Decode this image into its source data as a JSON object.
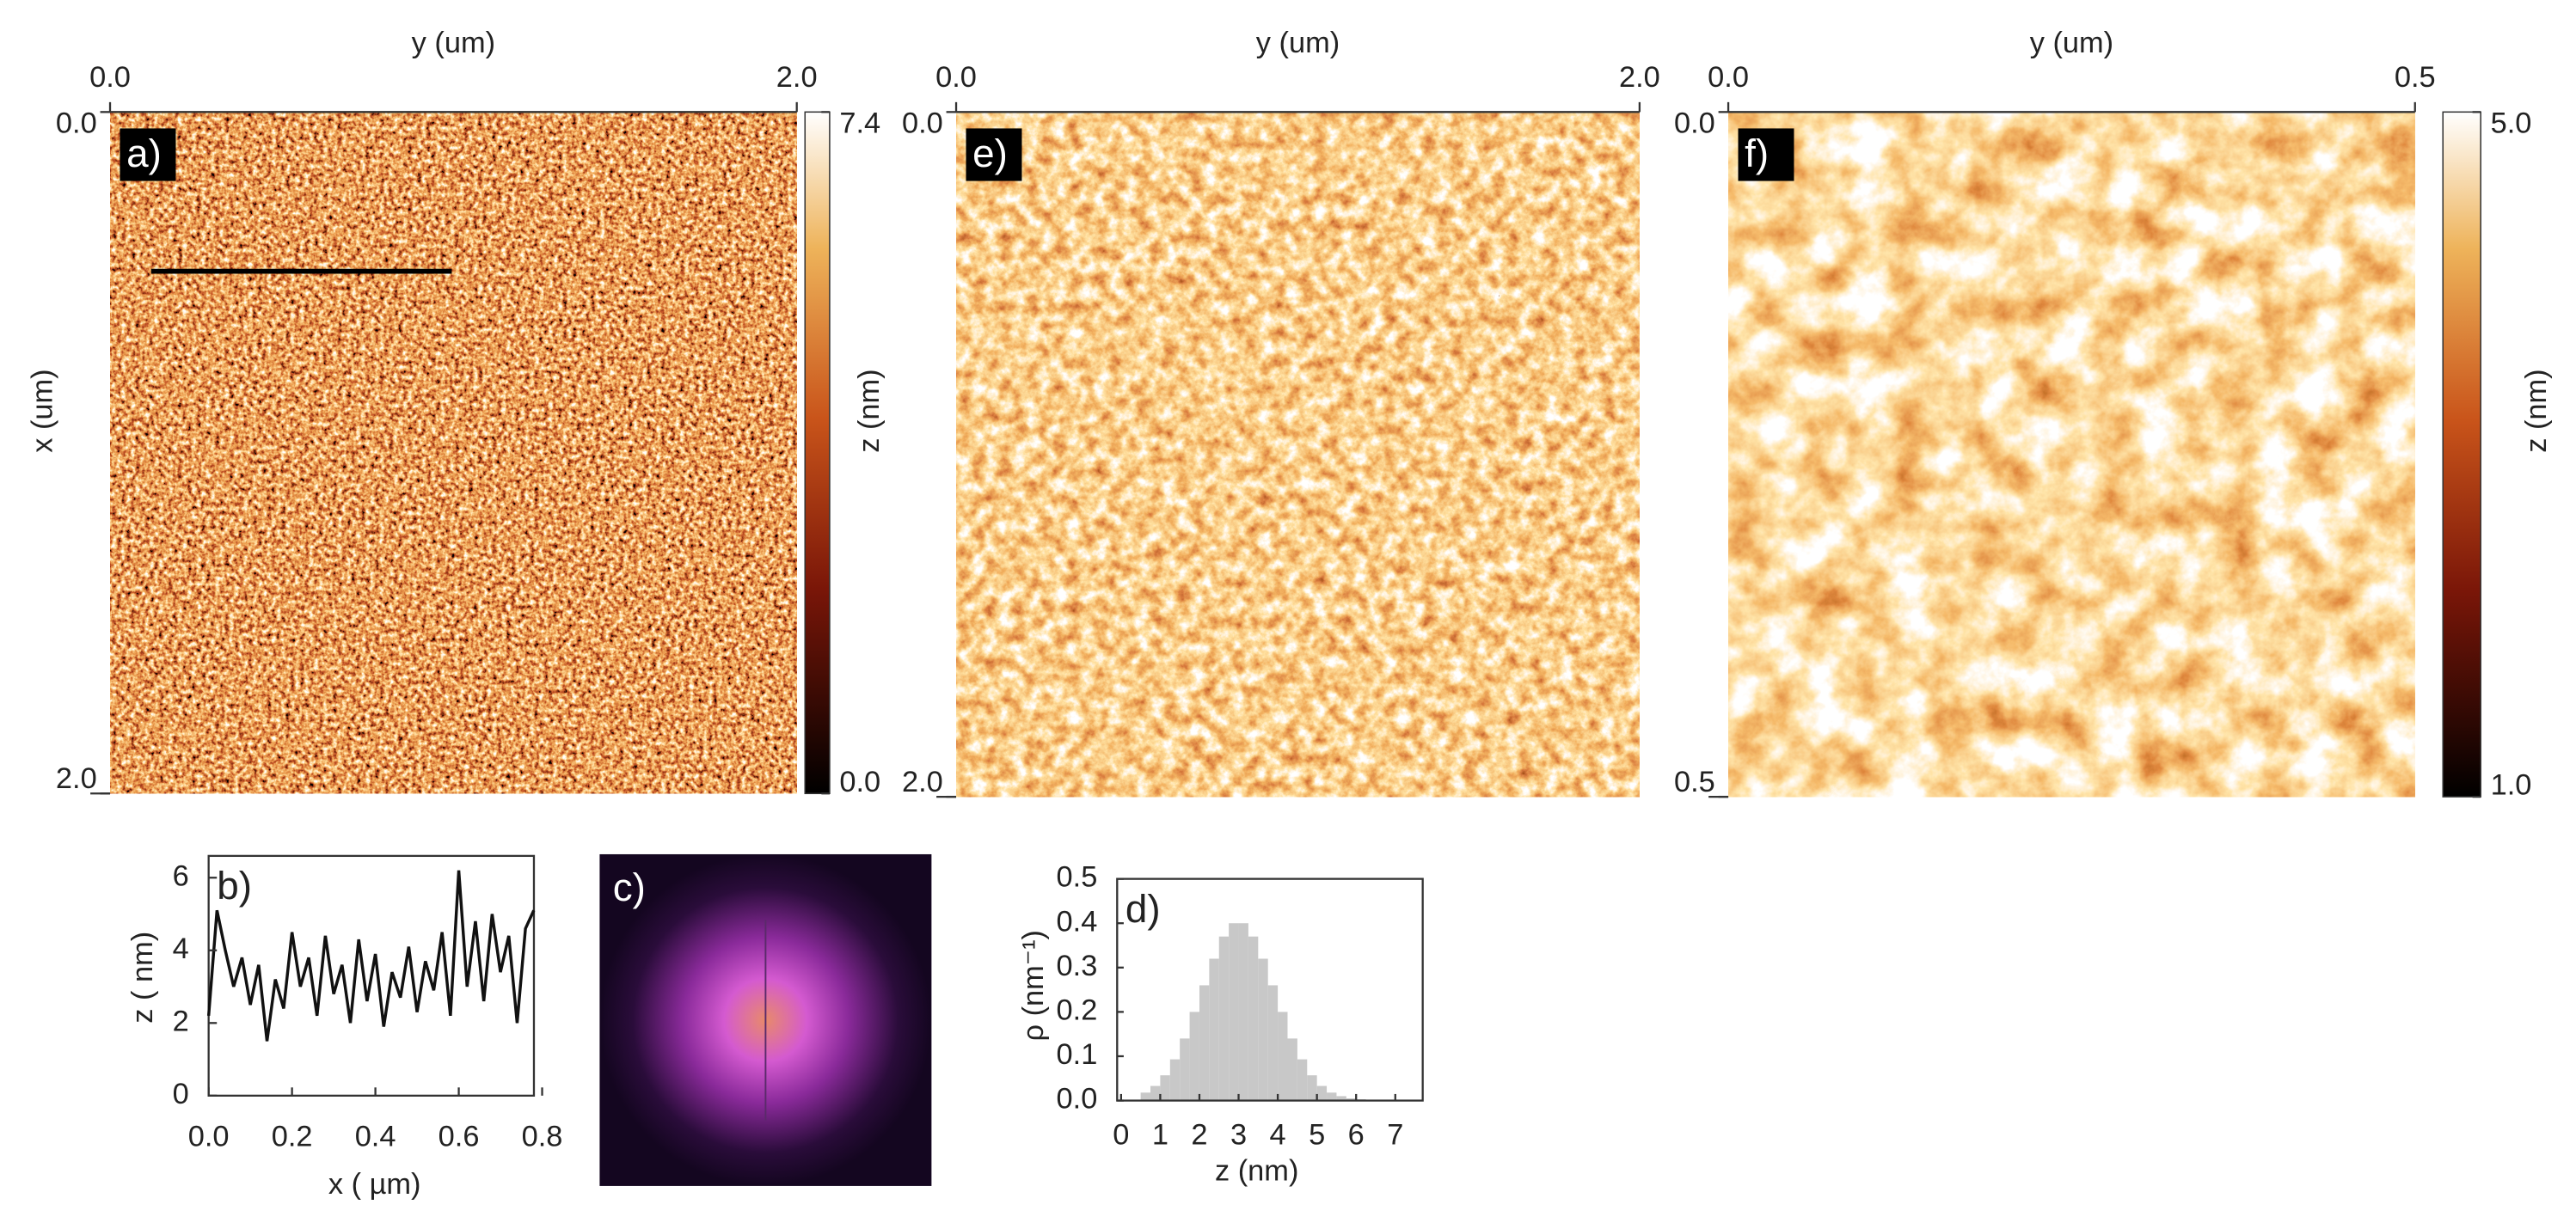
{
  "chart_data": [
    {
      "type": "image",
      "label": "a)",
      "xlabel": "y (um)",
      "ylabel": "x (um)",
      "xlim": [
        0,
        2
      ],
      "xticks": [
        {
          "value": 0,
          "label": "0.0"
        },
        {
          "value": 2,
          "label": "2.0"
        }
      ],
      "ylim": [
        0,
        2
      ],
      "yticks": [
        {
          "value": 0,
          "label": "0.0"
        },
        {
          "value": 2,
          "label": "2.0"
        }
      ],
      "colorbar": {
        "label": "z (nm)",
        "lim": [
          0,
          7.4
        ],
        "ticks": [
          {
            "value": 0,
            "label": "0.0"
          },
          7.4
        ]
      }
    },
    {
      "type": "line",
      "label": "b)",
      "xlabel": "x ( µm)",
      "ylabel": "z ( nm)",
      "color": "#111111",
      "x": [
        0,
        0.02,
        0.04,
        0.06,
        0.08,
        0.1,
        0.12,
        0.14,
        0.16,
        0.18,
        0.2,
        0.22,
        0.24,
        0.26,
        0.28,
        0.3,
        0.32,
        0.34,
        0.36,
        0.38,
        0.4,
        0.42,
        0.44,
        0.46,
        0.48,
        0.5,
        0.52,
        0.54,
        0.56,
        0.58,
        0.6,
        0.62,
        0.64,
        0.66,
        0.68,
        0.7,
        0.72,
        0.74,
        0.76,
        0.78
      ],
      "values": [
        2.2,
        5.1,
        4.0,
        3.0,
        3.8,
        2.5,
        3.6,
        1.5,
        3.2,
        2.4,
        4.5,
        3.0,
        3.8,
        2.2,
        4.4,
        2.8,
        3.6,
        2.0,
        4.3,
        2.6,
        3.9,
        1.9,
        3.4,
        2.7,
        4.1,
        2.3,
        3.7,
        2.9,
        4.5,
        2.2,
        6.2,
        3.0,
        4.8,
        2.6,
        5.0,
        3.4,
        4.4,
        2.0,
        4.6,
        5.1
      ],
      "xlim": [
        0,
        0.8
      ],
      "xticks": [
        {
          "value": 0,
          "label": "0.0"
        },
        0.2,
        0.4,
        0.6,
        0.8
      ],
      "ylim": [
        0,
        6.6
      ],
      "yticks": [
        0,
        2,
        4,
        6
      ]
    },
    {
      "type": "image",
      "label": "c)"
    },
    {
      "type": "histogram",
      "label": "d)",
      "xlabel": "z (nm)",
      "ylabel": "ρ (nm⁻¹)",
      "color": "#c8c8c8",
      "bins": [
        0.5,
        0.75,
        1.0,
        1.25,
        1.5,
        1.75,
        2.0,
        2.25,
        2.5,
        2.75,
        3.0,
        3.25,
        3.5,
        3.75,
        4.0,
        4.25,
        4.5,
        4.75,
        5.0,
        5.25,
        5.5,
        5.75,
        6.0,
        6.25,
        6.5,
        6.75,
        7.0
      ],
      "values": [
        0.018,
        0.033,
        0.057,
        0.093,
        0.14,
        0.2,
        0.26,
        0.32,
        0.37,
        0.4,
        0.4,
        0.37,
        0.32,
        0.26,
        0.2,
        0.14,
        0.093,
        0.057,
        0.033,
        0.018,
        0.01,
        0.005,
        0.003,
        0.002,
        0.001,
        0.001
      ],
      "xlim": [
        -0.1,
        7.7
      ],
      "xticks": [
        0,
        1,
        2,
        3,
        4,
        5,
        6,
        7
      ],
      "ylim": [
        0,
        0.5
      ],
      "yticks": [
        {
          "value": 0,
          "label": "0.0"
        },
        0.1,
        0.2,
        0.3,
        0.4,
        0.5
      ]
    },
    {
      "type": "image",
      "label": "e)",
      "xlabel": "y (um)",
      "xlim": [
        0,
        2
      ],
      "xticks": [
        {
          "value": 0,
          "label": "0.0"
        },
        {
          "value": 2,
          "label": "2.0"
        }
      ],
      "ylim": [
        0,
        2
      ],
      "yticks": [
        {
          "value": 0,
          "label": "0.0"
        },
        {
          "value": 2,
          "label": "2.0"
        }
      ]
    },
    {
      "type": "image",
      "label": "f)",
      "xlabel": "y (um)",
      "xlim": [
        0,
        0.5
      ],
      "xticks": [
        {
          "value": 0,
          "label": "0.0"
        },
        0.5
      ],
      "ylim": [
        0,
        0.5
      ],
      "yticks": [
        {
          "value": 0,
          "label": "0.0"
        },
        0.5
      ],
      "colorbar": {
        "label": "z (nm)",
        "lim": [
          1,
          5
        ],
        "ticks": [
          {
            "value": 1,
            "label": "1.0"
          },
          {
            "value": 5,
            "label": "5.0"
          }
        ]
      }
    }
  ]
}
